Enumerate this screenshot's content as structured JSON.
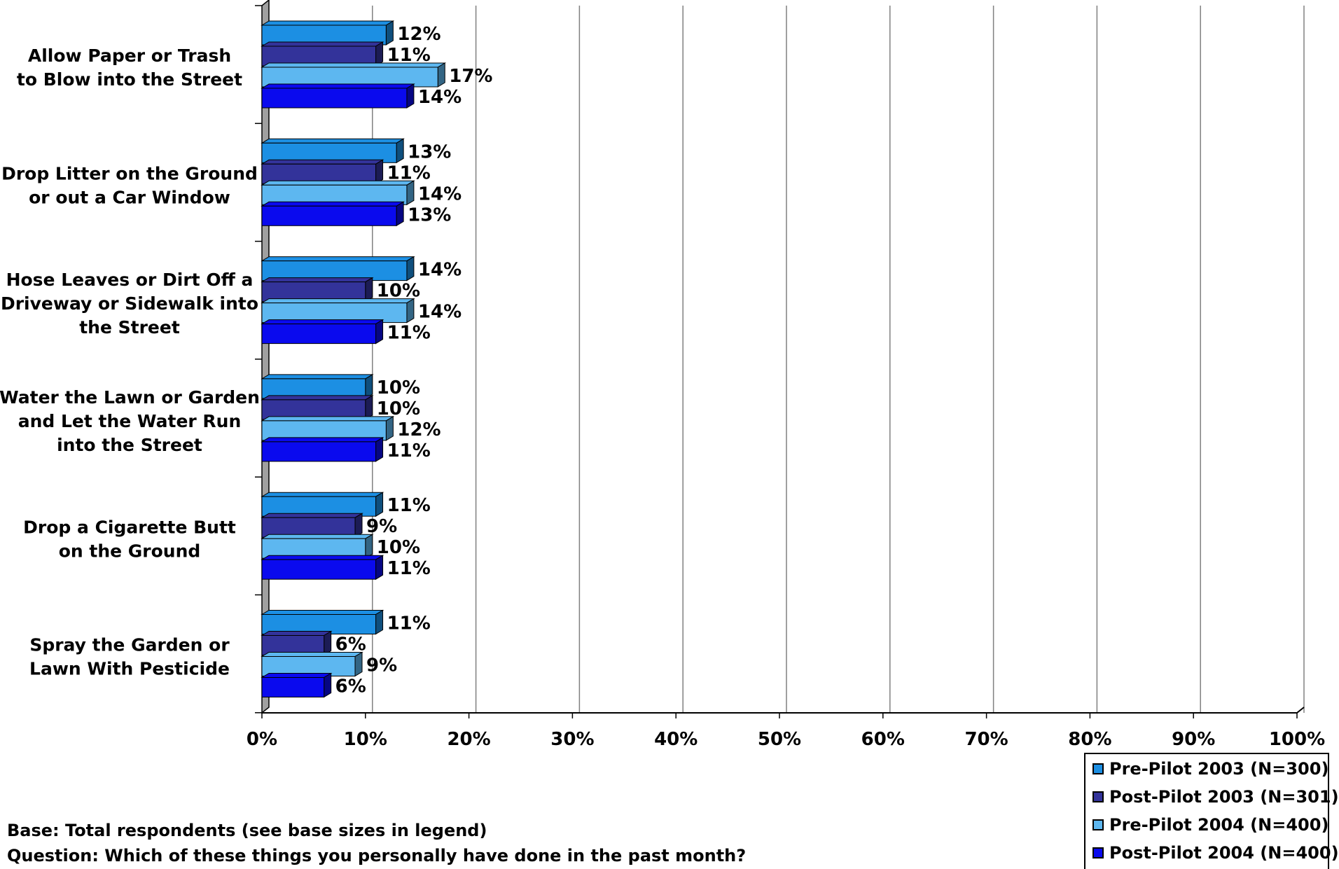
{
  "chart_data": {
    "type": "bar",
    "orientation": "horizontal",
    "categories": [
      [
        "Allow Paper or Trash",
        "to Blow into the Street"
      ],
      [
        "Drop Litter on the Ground",
        "or out a Car Window"
      ],
      [
        "Hose Leaves or Dirt Off a",
        "Driveway or Sidewalk into",
        "the Street"
      ],
      [
        "Water the Lawn or Garden",
        "and Let the Water Run",
        "into the Street"
      ],
      [
        "Drop a Cigarette Butt",
        "on the Ground"
      ],
      [
        "Spray the Garden or",
        "Lawn With Pesticide"
      ]
    ],
    "series": [
      {
        "name": "Pre-Pilot 2003 (N=300)",
        "color": "#1C8FE3",
        "values": [
          12,
          13,
          14,
          10,
          11,
          11
        ]
      },
      {
        "name": "Post-Pilot 2003 (N=301)",
        "color": "#33339A",
        "values": [
          11,
          11,
          10,
          10,
          9,
          6
        ]
      },
      {
        "name": "Pre-Pilot 2004 (N=400)",
        "color": "#5DB7F0",
        "values": [
          17,
          14,
          14,
          12,
          10,
          9
        ]
      },
      {
        "name": "Post-Pilot 2004 (N=400)",
        "color": "#0A0AEE",
        "values": [
          14,
          13,
          11,
          11,
          11,
          6
        ]
      }
    ],
    "value_suffix": "%",
    "xlim": [
      0,
      100
    ],
    "xticks": [
      "0%",
      "10%",
      "20%",
      "30%",
      "40%",
      "50%",
      "60%",
      "70%",
      "80%",
      "90%",
      "100%"
    ],
    "grid": "vertical",
    "legend_position": "bottom-right",
    "title": "",
    "xlabel": "",
    "ylabel": ""
  },
  "footnotes": {
    "base": "Base: Total respondents (see base sizes in legend)",
    "question": "Question: Which of these things you personally have done in the past month?"
  }
}
